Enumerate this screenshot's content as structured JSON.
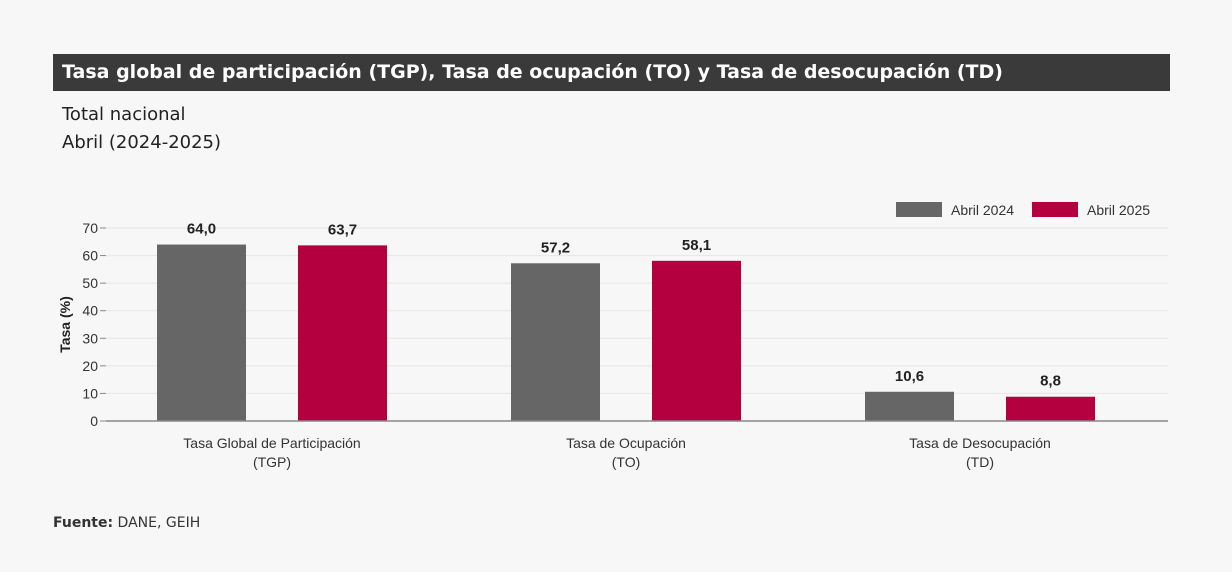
{
  "header": {
    "title": "Tasa global de participación (TGP), Tasa de ocupación (TO) y Tasa de desocupación (TD)",
    "subtitle_1": "Total nacional",
    "subtitle_2": "Abril (2024-2025)"
  },
  "footer": {
    "source_label": "Fuente:",
    "source_text": " DANE, GEIH"
  },
  "chart_data": {
    "type": "bar",
    "categories": [
      [
        "Tasa Global de Participación",
        "(TGP)"
      ],
      [
        "Tasa de Ocupación",
        "(TO)"
      ],
      [
        "Tasa de Desocupación",
        "(TD)"
      ]
    ],
    "series": [
      {
        "name": "Abril 2024",
        "values": [
          64.0,
          57.2,
          10.6
        ],
        "labels": [
          "64,0",
          "57,2",
          "10,6"
        ],
        "color": "#666666"
      },
      {
        "name": "Abril 2025",
        "values": [
          63.7,
          58.1,
          8.8
        ],
        "labels": [
          "63,7",
          "58,1",
          "8,8"
        ],
        "color": "#b5003f"
      }
    ],
    "ylabel": "Tasa (%)",
    "xlabel": "",
    "ylim": [
      0,
      70
    ],
    "yticks": [
      0,
      10,
      20,
      30,
      40,
      50,
      60,
      70
    ],
    "grid": true,
    "legend_position": "top-right"
  }
}
